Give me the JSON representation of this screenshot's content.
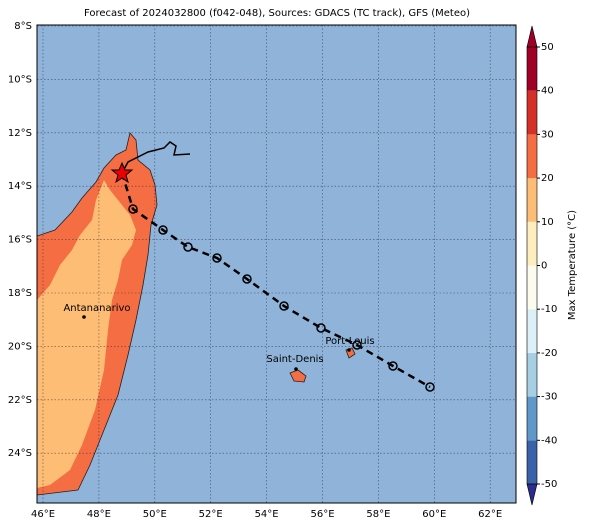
{
  "title": "Forecast of 2024032800 (f042-048), Sources: GDACS (TC track), GFS (Meteo)",
  "lat_labels": [
    "8°S",
    "10°S",
    "12°S",
    "14°S",
    "16°S",
    "18°S",
    "20°S",
    "22°S",
    "24°S"
  ],
  "lon_labels": [
    "46°E",
    "48°E",
    "50°E",
    "52°E",
    "54°E",
    "56°E",
    "58°E",
    "60°E",
    "62°E"
  ],
  "cities": [
    "Antananarivo",
    "Saint-Denis",
    "Port-Louis"
  ],
  "colorbar": {
    "label": "Max Temperature (°C)",
    "lim": [
      -50,
      50
    ],
    "ticks": [
      -50,
      -40,
      -30,
      -20,
      -10,
      0,
      10,
      20,
      30,
      40,
      50
    ],
    "colors": [
      "#2b2d8c",
      "#3a62aa",
      "#6098c9",
      "#a6cfe4",
      "#dcf0f7",
      "#fbfcee",
      "#feedbf",
      "#fdbd74",
      "#f46d43",
      "#d43028",
      "#a00026"
    ]
  }
}
